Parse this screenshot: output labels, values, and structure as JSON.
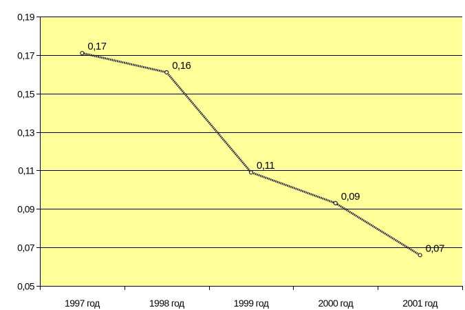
{
  "chart_data": {
    "type": "line",
    "categories": [
      "1997 год",
      "1998 год",
      "1999 год",
      "2000 год",
      "2001 год"
    ],
    "series": [
      {
        "values": [
          0.17,
          0.16,
          0.11,
          0.09,
          0.07
        ]
      }
    ],
    "plotted_values": [
      0.171,
      0.161,
      0.109,
      0.093,
      0.066
    ],
    "data_labels": [
      "0,17",
      "0,16",
      "0,11",
      "0,09",
      "0,07"
    ],
    "y_ticks": [
      0.05,
      0.07,
      0.09,
      0.11,
      0.13,
      0.15,
      0.17,
      0.19
    ],
    "y_tick_labels": [
      "0,05",
      "0,07",
      "0,09",
      "0,11",
      "0,13",
      "0,15",
      "0,17",
      "0,19"
    ],
    "ylim": [
      0.05,
      0.19
    ],
    "title": "",
    "xlabel": "",
    "ylabel": "",
    "grid": true,
    "legend": "none",
    "colors": {
      "plot_background": "#FFFF99",
      "gridline": "#000000",
      "line": "#1F1F3F"
    }
  }
}
